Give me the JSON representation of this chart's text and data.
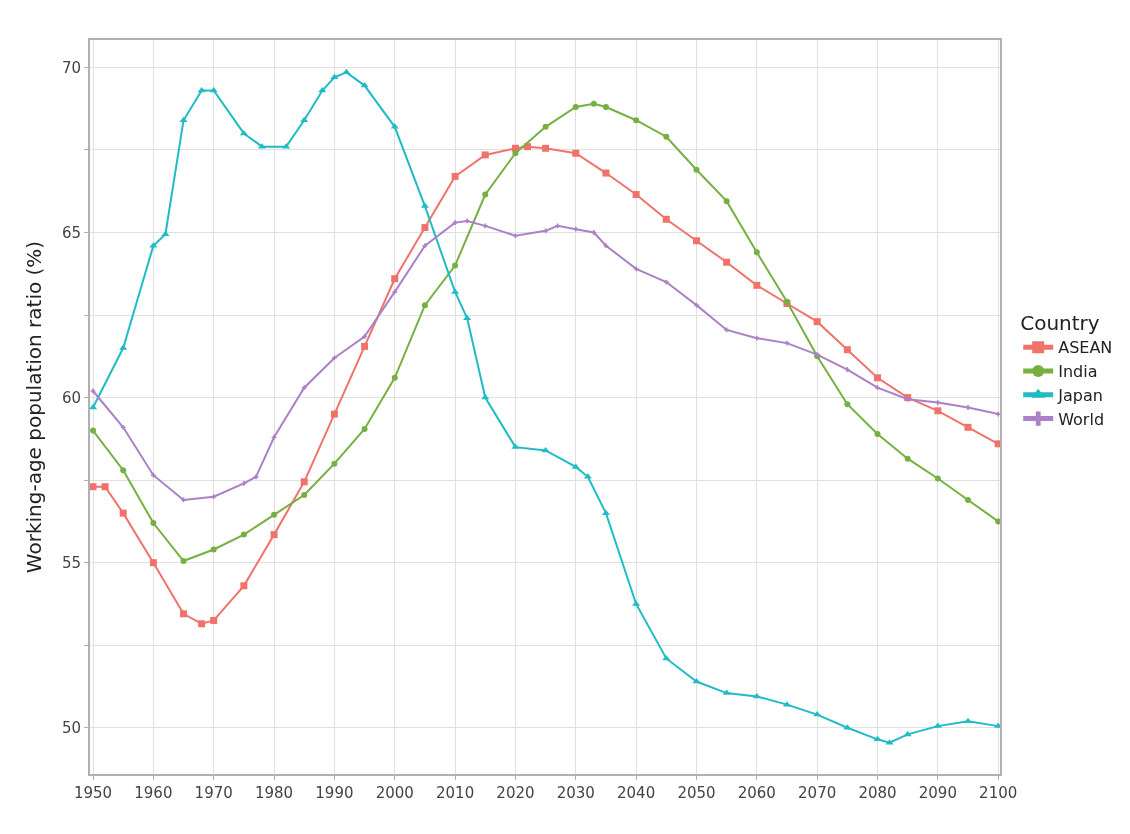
{
  "chart_data": {
    "type": "line",
    "ylabel": "Working-age population ratio (%)",
    "legend_title": "Country",
    "legend": "right",
    "grid": true,
    "line_style": "solid",
    "xlim": [
      1949.5,
      2100.3
    ],
    "xticks": [
      1950,
      1960,
      1970,
      1980,
      1990,
      2000,
      2010,
      2020,
      2030,
      2040,
      2050,
      2060,
      2070,
      2080,
      2090,
      2100
    ],
    "ylim": [
      48.6,
      70.83
    ],
    "yticks": [
      50,
      {
        "value": 52.5,
        "label": null
      },
      55,
      {
        "value": 57.5,
        "label": null
      },
      60,
      {
        "value": 62.5,
        "label": null
      },
      65,
      {
        "value": 67.5,
        "label": null
      },
      70
    ],
    "series": [
      {
        "name": "ASEAN",
        "color": "#f0736b",
        "marker": "square",
        "x": [
          1950,
          1952,
          1955,
          1960,
          1965,
          1968,
          1970,
          1975,
          1980,
          1985,
          1990,
          1995,
          2000,
          2005,
          2010,
          2015,
          2020,
          2022,
          2025,
          2030,
          2035,
          2040,
          2045,
          2050,
          2055,
          2060,
          2065,
          2070,
          2075,
          2080,
          2085,
          2090,
          2095,
          2100
        ],
        "values": [
          57.3,
          57.3,
          56.5,
          55.0,
          53.45,
          53.15,
          53.25,
          54.3,
          55.85,
          57.45,
          59.5,
          61.55,
          63.6,
          65.15,
          66.7,
          67.35,
          67.55,
          67.6,
          67.55,
          67.4,
          66.8,
          66.15,
          65.4,
          64.75,
          64.1,
          63.4,
          62.85,
          62.3,
          61.45,
          60.6,
          60.0,
          59.6,
          59.1,
          58.6
        ]
      },
      {
        "name": "India",
        "color": "#76b041",
        "marker": "circle",
        "x": [
          1950,
          1955,
          1960,
          1965,
          1970,
          1975,
          1980,
          1985,
          1990,
          1995,
          2000,
          2005,
          2010,
          2015,
          2020,
          2025,
          2030,
          2033,
          2035,
          2040,
          2045,
          2050,
          2055,
          2060,
          2065,
          2070,
          2075,
          2080,
          2085,
          2090,
          2095,
          2100
        ],
        "values": [
          59.0,
          57.8,
          56.2,
          55.05,
          55.4,
          55.85,
          56.45,
          57.05,
          58.0,
          59.05,
          60.6,
          62.8,
          64.0,
          66.15,
          67.4,
          68.2,
          68.8,
          68.9,
          68.8,
          68.4,
          67.9,
          66.9,
          65.95,
          64.4,
          62.9,
          61.25,
          59.8,
          58.9,
          58.15,
          57.55,
          56.9,
          56.25
        ]
      },
      {
        "name": "Japan",
        "color": "#1fbcc5",
        "marker": "triangle",
        "x": [
          1950,
          1955,
          1960,
          1962,
          1965,
          1968,
          1970,
          1975,
          1978,
          1982,
          1985,
          1988,
          1990,
          1992,
          1995,
          2000,
          2005,
          2010,
          2012,
          2015,
          2020,
          2025,
          2030,
          2032,
          2035,
          2040,
          2045,
          2050,
          2055,
          2060,
          2065,
          2070,
          2075,
          2080,
          2082,
          2085,
          2090,
          2095,
          2100
        ],
        "values": [
          59.7,
          61.5,
          64.6,
          64.95,
          68.4,
          69.3,
          69.3,
          68.0,
          67.6,
          67.6,
          68.4,
          69.3,
          69.7,
          69.85,
          69.45,
          68.2,
          65.8,
          63.2,
          62.4,
          60.0,
          58.5,
          58.4,
          57.9,
          57.6,
          56.5,
          53.75,
          52.1,
          51.4,
          51.05,
          50.95,
          50.7,
          50.4,
          50.0,
          49.65,
          49.55,
          49.8,
          50.05,
          50.2,
          50.05
        ]
      },
      {
        "name": "World",
        "color": "#ab80c6",
        "marker": "cross",
        "x": [
          1950,
          1955,
          1960,
          1965,
          1970,
          1975,
          1977,
          1980,
          1985,
          1990,
          1995,
          2000,
          2005,
          2010,
          2012,
          2015,
          2020,
          2025,
          2027,
          2030,
          2033,
          2035,
          2040,
          2045,
          2050,
          2055,
          2060,
          2065,
          2070,
          2075,
          2080,
          2085,
          2090,
          2095,
          2100
        ],
        "values": [
          60.2,
          59.1,
          57.65,
          56.9,
          57.0,
          57.4,
          57.6,
          58.8,
          60.3,
          61.2,
          61.85,
          63.2,
          64.6,
          65.3,
          65.35,
          65.2,
          64.9,
          65.05,
          65.2,
          65.1,
          65.0,
          64.6,
          63.9,
          63.5,
          62.8,
          62.05,
          61.8,
          61.65,
          61.3,
          60.85,
          60.3,
          59.95,
          59.85,
          59.7,
          59.5
        ]
      }
    ]
  }
}
